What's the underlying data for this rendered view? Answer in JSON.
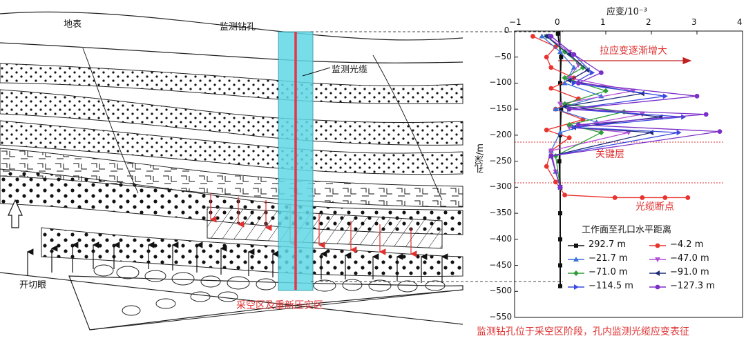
{
  "diagram": {
    "surface_label": "地表",
    "borehole_label": "监测钻孔",
    "cable_label": "监测光缆",
    "cut_eye_label": "开切眼",
    "goaf_label": "采空区及重新压实区"
  },
  "chart_data": {
    "type": "line",
    "title": "",
    "xlabel": "应变/10⁻³",
    "ylabel": "孔深/m",
    "xlim": [
      -1,
      4
    ],
    "ylim": [
      -550,
      0
    ],
    "xticks": [
      "−1",
      "0",
      "1",
      "2",
      "3",
      "4"
    ],
    "yticks": [
      "0",
      "−50",
      "−100",
      "−150",
      "−200",
      "−250",
      "−300",
      "−350",
      "−400",
      "−450",
      "−500",
      "−550"
    ],
    "legend_title": "工作面至孔口水平距离",
    "legend_position": "bottom-right",
    "annotations": {
      "increase": "拉应变逐渐增大",
      "key_layer": "关键层",
      "break_point": "光缆断点"
    },
    "series": [
      {
        "name": "292.7 m",
        "color": "#111111",
        "marker": "square",
        "points": [
          [
            -0.05,
            -5
          ],
          [
            0.02,
            -50
          ],
          [
            0.0,
            -100
          ],
          [
            0.02,
            -150
          ],
          [
            0.0,
            -200
          ],
          [
            -0.02,
            -250
          ],
          [
            0.0,
            -300
          ],
          [
            0.0,
            -350
          ],
          [
            0.0,
            -400
          ],
          [
            0.0,
            -450
          ],
          [
            0.0,
            -490
          ]
        ]
      },
      {
        "name": "−4.2 m",
        "color": "#e8332f",
        "marker": "circle",
        "points": [
          [
            -0.6,
            -10
          ],
          [
            -0.1,
            -30
          ],
          [
            -0.3,
            -50
          ],
          [
            -0.2,
            -70
          ],
          [
            0.3,
            -90
          ],
          [
            -0.2,
            -110
          ],
          [
            0.4,
            -130
          ],
          [
            -0.1,
            -150
          ],
          [
            0.5,
            -170
          ],
          [
            -0.3,
            -190
          ],
          [
            0.2,
            -205
          ],
          [
            -0.2,
            -230
          ],
          [
            -0.3,
            -260
          ],
          [
            -0.1,
            -290
          ],
          [
            0.1,
            -315
          ],
          [
            1.2,
            -320
          ],
          [
            1.8,
            -320
          ],
          [
            2.3,
            -320
          ],
          [
            2.8,
            -320
          ]
        ]
      },
      {
        "name": "−21.7 m",
        "color": "#3a6fd8",
        "marker": "triangle",
        "points": [
          [
            -0.4,
            -10
          ],
          [
            0.0,
            -40
          ],
          [
            0.3,
            -70
          ],
          [
            0.1,
            -100
          ],
          [
            0.9,
            -125
          ],
          [
            -0.1,
            -150
          ],
          [
            0.8,
            -175
          ],
          [
            0.0,
            -195
          ],
          [
            -0.2,
            -230
          ],
          [
            -0.1,
            -270
          ],
          [
            0.0,
            -300
          ]
        ]
      },
      {
        "name": "−47.0 m",
        "color": "#b24fd6",
        "marker": "triangle-down",
        "points": [
          [
            -0.3,
            -10
          ],
          [
            0.2,
            -40
          ],
          [
            0.4,
            -65
          ],
          [
            0.2,
            -90
          ],
          [
            1.6,
            -115
          ],
          [
            0.0,
            -140
          ],
          [
            1.8,
            -160
          ],
          [
            0.2,
            -185
          ],
          [
            1.5,
            -195
          ],
          [
            -0.2,
            -230
          ],
          [
            -0.1,
            -270
          ],
          [
            0.0,
            -300
          ]
        ]
      },
      {
        "name": "−71.0 m",
        "color": "#2e9e3a",
        "marker": "diamond",
        "points": [
          [
            -0.3,
            -10
          ],
          [
            0.1,
            -40
          ],
          [
            0.5,
            -70
          ],
          [
            0.1,
            -90
          ],
          [
            1.0,
            -115
          ],
          [
            0.1,
            -140
          ],
          [
            1.4,
            -155
          ],
          [
            0.2,
            -180
          ],
          [
            0.9,
            -195
          ],
          [
            -0.1,
            -240
          ],
          [
            0.0,
            -300
          ]
        ]
      },
      {
        "name": "−91.0 m",
        "color": "#1c2a7a",
        "marker": "triangle-left",
        "points": [
          [
            -0.3,
            -10
          ],
          [
            0.2,
            -45
          ],
          [
            0.6,
            -75
          ],
          [
            0.2,
            -95
          ],
          [
            1.8,
            -120
          ],
          [
            0.1,
            -145
          ],
          [
            2.2,
            -165
          ],
          [
            0.3,
            -185
          ],
          [
            2.0,
            -195
          ],
          [
            -0.2,
            -240
          ],
          [
            0.0,
            -300
          ]
        ]
      },
      {
        "name": "−114.5 m",
        "color": "#3a48e0",
        "marker": "triangle-right",
        "points": [
          [
            -0.2,
            -10
          ],
          [
            0.3,
            -45
          ],
          [
            0.7,
            -80
          ],
          [
            0.3,
            -100
          ],
          [
            2.3,
            -125
          ],
          [
            0.2,
            -150
          ],
          [
            2.7,
            -165
          ],
          [
            0.3,
            -185
          ],
          [
            2.6,
            -195
          ],
          [
            -0.2,
            -240
          ],
          [
            0.0,
            -300
          ]
        ]
      },
      {
        "name": "−127.3 m",
        "color": "#7b2fc9",
        "marker": "hexagon",
        "points": [
          [
            -0.2,
            -10
          ],
          [
            0.3,
            -45
          ],
          [
            0.9,
            -80
          ],
          [
            0.4,
            -100
          ],
          [
            3.0,
            -125
          ],
          [
            0.2,
            -150
          ],
          [
            3.2,
            -160
          ],
          [
            0.4,
            -180
          ],
          [
            3.5,
            -193
          ],
          [
            -0.2,
            -240
          ],
          [
            0.0,
            -300
          ]
        ]
      }
    ]
  },
  "caption": "监测钻孔位于采空区阶段，孔内监测光缆应变表征"
}
